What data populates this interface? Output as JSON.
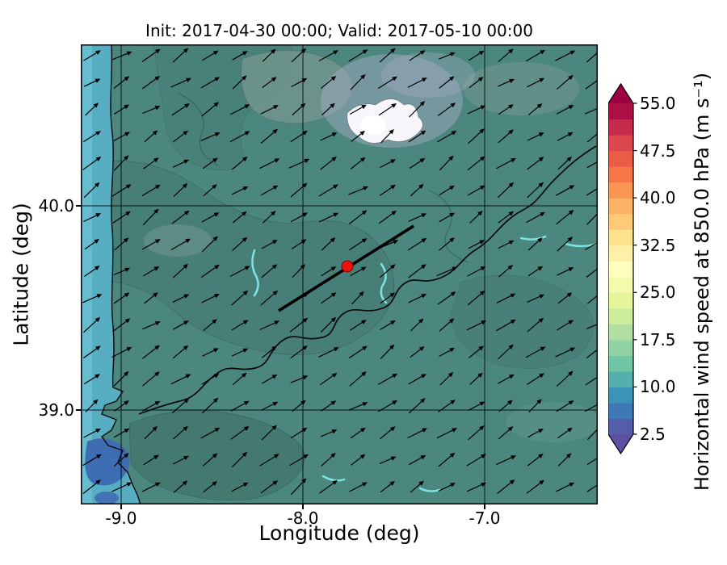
{
  "title": "Init: 2017-04-30 00:00; Valid: 2017-05-10 00:00",
  "axes": {
    "xlabel": "Longitude (deg)",
    "ylabel": "Latitude (deg)",
    "xticks": [
      "-9.0",
      "-8.0",
      "-7.0"
    ],
    "yticks": [
      "40.0",
      "39.0"
    ]
  },
  "colorbar": {
    "label": "Horizontal wind speed at 850.0 hPa (m s⁻¹)",
    "ticks": [
      "55.0",
      "47.5",
      "40.0",
      "32.5",
      "25.0",
      "17.5",
      "10.0",
      "2.5"
    ],
    "units": "m s⁻¹",
    "segments": [
      "#535da8",
      "#3f78b5",
      "#3c93b8",
      "#55afad",
      "#70c6a5",
      "#91d3a4",
      "#b1dfa3",
      "#cdeb9d",
      "#e7f59a",
      "#f3faac",
      "#ffffbf",
      "#fef0a6",
      "#fee28d",
      "#feca79",
      "#fdb365",
      "#f99555",
      "#f57647",
      "#e95d47",
      "#da474c",
      "#c52c4b",
      "#ab0f45"
    ],
    "under_color": "#5e4fa2",
    "over_color": "#9e0142"
  },
  "map_colors": {
    "base": "#4b867f",
    "ocean": "#57aec2",
    "ocean_bright": "#6bc0d2",
    "ocean_deep": "#3f6db4",
    "dark_teal": "#477e77",
    "dark_teal2": "#44786f",
    "gray_green": "#76988f",
    "light_teal": "#5a9189",
    "lavender": "#a9aec6",
    "white_patch": "#f7f6fa",
    "cyan_stream": "#7ce4e2",
    "coast": "#0a0a0a",
    "grid": "#000000",
    "transect": "#000000",
    "marker_red": "#ee1111",
    "arrow": "#000000"
  },
  "marker": {
    "lon": -7.76,
    "lat": 39.7
  },
  "cross_section": {
    "from_lon": -8.12,
    "from_lat": 39.49,
    "to_lon": -7.39,
    "to_lat": 39.9
  },
  "chart_data": {
    "type": "heatmap",
    "subtype": "filled_contour_map_with_wind_quiver",
    "title": "Init: 2017-04-30 00:00; Valid: 2017-05-10 00:00",
    "xlabel": "Longitude (deg)",
    "ylabel": "Latitude (deg)",
    "xlim": [
      -9.22,
      -6.38
    ],
    "ylim": [
      38.54,
      40.79
    ],
    "xticks": [
      -9.0,
      -8.0,
      -7.0
    ],
    "yticks": [
      39.0,
      40.0
    ],
    "grid": true,
    "colormap": "Spectral_r",
    "colorbar": {
      "label": "Horizontal wind speed at 850.0 hPa (m s⁻¹)",
      "ticks": [
        2.5,
        10.0,
        17.5,
        25.0,
        32.5,
        40.0,
        47.5,
        55.0
      ],
      "vmin": 2.5,
      "vmax": 55.0,
      "level_step": 2.5,
      "extend": "both",
      "position": "right"
    },
    "field_summary": {
      "dominant_wind_speed_ms": [
        10,
        15
      ],
      "atlantic_band_west_of_coast_ms": [
        7.5,
        10
      ],
      "low_speed_blue_patch": {
        "lon": -8.85,
        "lat": 38.62,
        "value_ms": 5
      },
      "high_speed_white_patch": {
        "lon": -7.55,
        "lat": 40.35,
        "value_ms": 25
      }
    },
    "quiver": {
      "direction": "toward northeast",
      "approx_bearing_deg": 55
    },
    "annotations": {
      "red_marker": {
        "lon": -7.76,
        "lat": 39.7
      },
      "cross_section_line": {
        "from": [
          -8.12,
          39.49
        ],
        "to": [
          -7.39,
          39.9
        ]
      }
    },
    "init_time": "2017-04-30 00:00",
    "valid_time": "2017-05-10 00:00",
    "pressure_level_hPa": 850.0
  }
}
